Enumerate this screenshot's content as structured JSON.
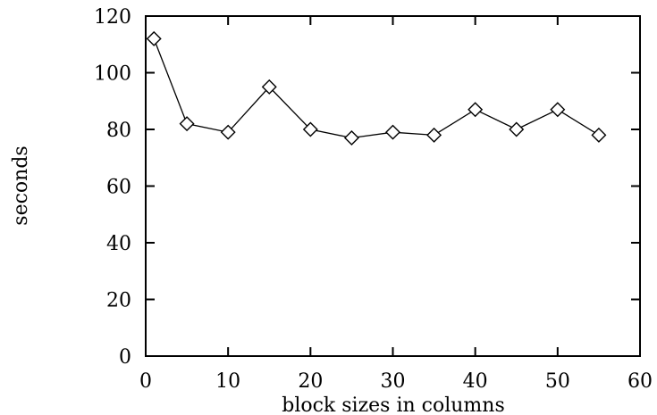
{
  "chart_data": {
    "type": "line",
    "title": "",
    "xlabel": "block sizes in columns",
    "ylabel": "seconds",
    "xlim": [
      0,
      60
    ],
    "ylim": [
      0,
      120
    ],
    "xticks": [
      0,
      10,
      20,
      30,
      40,
      50,
      60
    ],
    "yticks": [
      0,
      20,
      40,
      60,
      80,
      100,
      120
    ],
    "grid": false,
    "legend": "none",
    "marker": "diamond",
    "line_color": "#000000",
    "series": [
      {
        "x": [
          1,
          5,
          10,
          15,
          20,
          25,
          30,
          35,
          40,
          45,
          50,
          55
        ],
        "values": [
          112,
          82,
          79,
          95,
          80,
          77,
          79,
          78,
          87,
          80,
          87,
          78
        ]
      }
    ]
  }
}
